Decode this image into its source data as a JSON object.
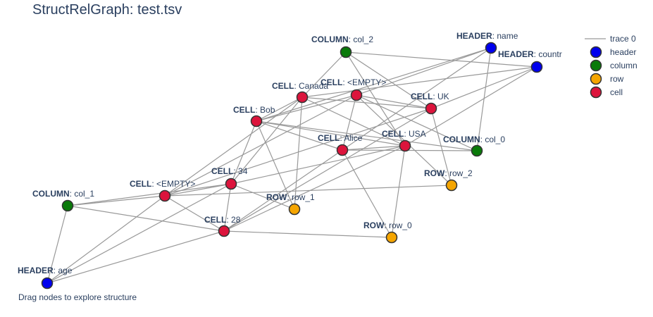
{
  "title": "StructRelGraph: test.tsv",
  "caption": "Drag nodes to explore structure",
  "colors": {
    "header": "#0000ee",
    "column": "#0a7a0a",
    "row": "#f5a500",
    "cell": "#dc143c",
    "edge": "#999999"
  },
  "legend": {
    "edge_label": "trace 0",
    "items": [
      {
        "key": "header",
        "label": "header"
      },
      {
        "key": "column",
        "label": "column"
      },
      {
        "key": "row",
        "label": "row"
      },
      {
        "key": "cell",
        "label": "cell"
      }
    ]
  },
  "nodes": [
    {
      "id": "h_name",
      "type": "header",
      "kind": "HEADER",
      "value": "name"
    },
    {
      "id": "h_country",
      "type": "header",
      "kind": "HEADER",
      "value": "countr"
    },
    {
      "id": "h_age",
      "type": "header",
      "kind": "HEADER",
      "value": "age"
    },
    {
      "id": "col_2",
      "type": "column",
      "kind": "COLUMN",
      "value": "col_2"
    },
    {
      "id": "col_0",
      "type": "column",
      "kind": "COLUMN",
      "value": "col_0"
    },
    {
      "id": "col_1",
      "type": "column",
      "kind": "COLUMN",
      "value": "col_1"
    },
    {
      "id": "row_2",
      "type": "row",
      "kind": "ROW",
      "value": "row_2"
    },
    {
      "id": "row_1",
      "type": "row",
      "kind": "ROW",
      "value": "row_1"
    },
    {
      "id": "row_0",
      "type": "row",
      "kind": "ROW",
      "value": "row_0"
    },
    {
      "id": "c_canada",
      "type": "cell",
      "kind": "CELL",
      "value": "Canada"
    },
    {
      "id": "c_empty1",
      "type": "cell",
      "kind": "CELL",
      "value": "<EMPTY>"
    },
    {
      "id": "c_uk",
      "type": "cell",
      "kind": "CELL",
      "value": "UK"
    },
    {
      "id": "c_bob",
      "type": "cell",
      "kind": "CELL",
      "value": "Bob"
    },
    {
      "id": "c_alice",
      "type": "cell",
      "kind": "CELL",
      "value": "Alice"
    },
    {
      "id": "c_usa",
      "type": "cell",
      "kind": "CELL",
      "value": "USA"
    },
    {
      "id": "c_34",
      "type": "cell",
      "kind": "CELL",
      "value": "34"
    },
    {
      "id": "c_empty2",
      "type": "cell",
      "kind": "CELL",
      "value": "<EMPTY>"
    },
    {
      "id": "c_28",
      "type": "cell",
      "kind": "CELL",
      "value": "28"
    }
  ],
  "edges": [
    [
      "c_bob",
      "h_name"
    ],
    [
      "c_alice",
      "h_name"
    ],
    [
      "c_empty1",
      "h_name"
    ],
    [
      "c_canada",
      "h_country"
    ],
    [
      "c_uk",
      "h_country"
    ],
    [
      "c_usa",
      "h_country"
    ],
    [
      "c_34",
      "h_age"
    ],
    [
      "c_28",
      "h_age"
    ],
    [
      "c_empty2",
      "h_age"
    ],
    [
      "c_bob",
      "col_0"
    ],
    [
      "c_alice",
      "col_0"
    ],
    [
      "c_empty1",
      "col_0"
    ],
    [
      "c_canada",
      "col_2"
    ],
    [
      "c_uk",
      "col_2"
    ],
    [
      "c_usa",
      "col_2"
    ],
    [
      "c_34",
      "col_1"
    ],
    [
      "c_28",
      "col_1"
    ],
    [
      "c_empty2",
      "col_1"
    ],
    [
      "c_alice",
      "row_0"
    ],
    [
      "c_28",
      "row_0"
    ],
    [
      "c_usa",
      "row_0"
    ],
    [
      "c_bob",
      "row_1"
    ],
    [
      "c_34",
      "row_1"
    ],
    [
      "c_canada",
      "row_1"
    ],
    [
      "c_empty1",
      "row_2"
    ],
    [
      "c_empty2",
      "row_2"
    ],
    [
      "c_uk",
      "row_2"
    ],
    [
      "col_1",
      "h_age"
    ],
    [
      "col_0",
      "h_name"
    ],
    [
      "col_2",
      "h_country"
    ],
    [
      "c_bob",
      "c_canada"
    ],
    [
      "c_bob",
      "c_34"
    ],
    [
      "c_bob",
      "c_alice"
    ],
    [
      "c_bob",
      "c_usa"
    ],
    [
      "c_alice",
      "c_28"
    ],
    [
      "c_alice",
      "c_usa"
    ],
    [
      "c_alice",
      "c_empty1"
    ],
    [
      "c_usa",
      "c_28"
    ],
    [
      "c_usa",
      "c_34"
    ],
    [
      "c_usa",
      "c_canada"
    ],
    [
      "c_canada",
      "c_34"
    ],
    [
      "c_canada",
      "c_uk"
    ],
    [
      "c_canada",
      "c_empty2"
    ],
    [
      "c_empty1",
      "c_uk"
    ],
    [
      "c_empty1",
      "c_empty2"
    ],
    [
      "c_empty1",
      "c_bob"
    ],
    [
      "c_uk",
      "c_empty2"
    ],
    [
      "c_uk",
      "c_28"
    ],
    [
      "c_34",
      "c_empty2"
    ],
    [
      "c_34",
      "c_28"
    ],
    [
      "c_empty2",
      "c_28"
    ]
  ]
}
